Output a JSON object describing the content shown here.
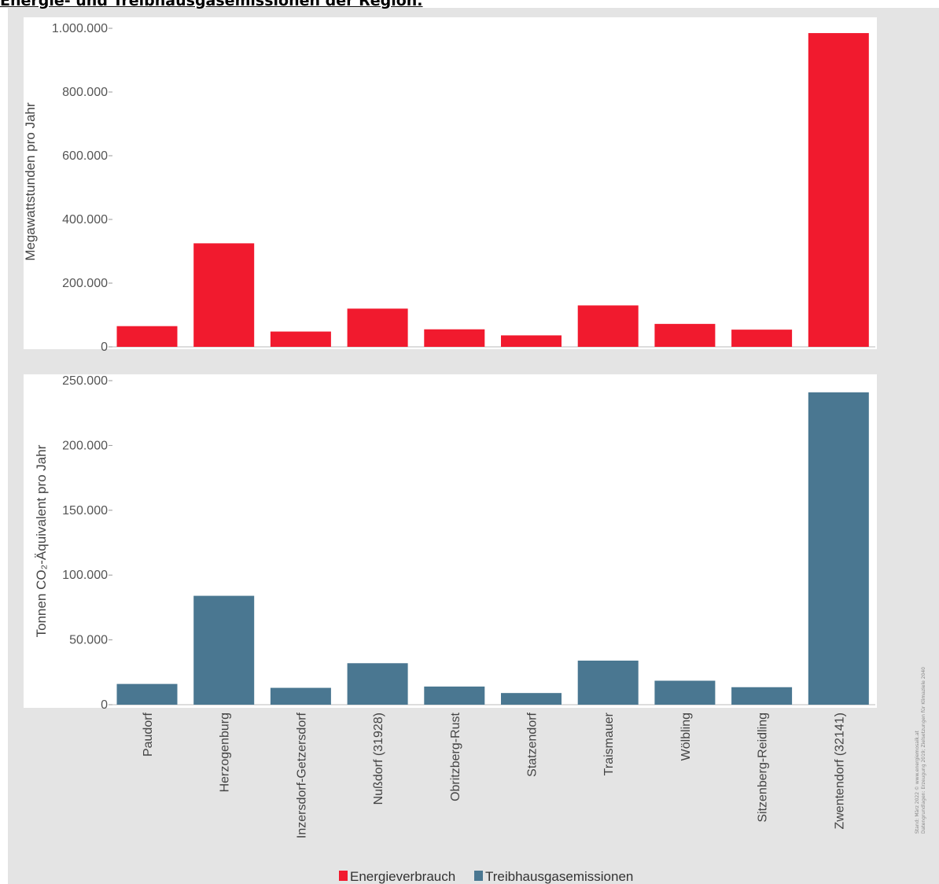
{
  "title": "Energie- und Treibhausgasemissionen der Region.",
  "source_lines": [
    "Stand: März 2022 © www.energiemosaik.at",
    "Datengrundlagen: Erzeugung 2019; Zielsetzungen für Klimaziele 2040"
  ],
  "colors": {
    "energy": "#f11a2e",
    "emissions": "#4a7791",
    "panel_bg": "#ffffff",
    "frame_bg": "#e4e4e4"
  },
  "chart_data": [
    {
      "type": "bar",
      "ylabel": "Megawattstunden pro Jahr",
      "ylim": [
        0,
        1000000
      ],
      "yticks": [
        0,
        200000,
        400000,
        600000,
        800000,
        1000000
      ],
      "ytick_labels": [
        "0",
        "200.000",
        "400.000",
        "600.000",
        "800.000",
        "1.000.000"
      ],
      "categories": [
        "Paudorf",
        "Herzogenburg",
        "Inzersdorf-Getzersdorf",
        "Nußdorf (31928)",
        "Obritzberg-Rust",
        "Statzendorf",
        "Traismauer",
        "Wölbling",
        "Sitzenberg-Reidling",
        "Zwentendorf (32141)"
      ],
      "series": [
        {
          "name": "Energieverbrauch",
          "values": [
            65000,
            325000,
            48000,
            120000,
            55000,
            36000,
            130000,
            72000,
            54000,
            985000
          ]
        }
      ],
      "grid": false
    },
    {
      "type": "bar",
      "ylabel": "Tonnen CO₂-Äquivalent pro Jahr",
      "ylim": [
        0,
        250000
      ],
      "yticks": [
        0,
        50000,
        100000,
        150000,
        200000,
        250000
      ],
      "ytick_labels": [
        "0",
        "50.000",
        "100.000",
        "150.000",
        "200.000",
        "250.000"
      ],
      "categories": [
        "Paudorf",
        "Herzogenburg",
        "Inzersdorf-Getzersdorf",
        "Nußdorf (31928)",
        "Obritzberg-Rust",
        "Statzendorf",
        "Traismauer",
        "Wölbling",
        "Sitzenberg-Reidling",
        "Zwentendorf (32141)"
      ],
      "series": [
        {
          "name": "Treibhausgasemissionen",
          "values": [
            16000,
            84000,
            13000,
            32000,
            14000,
            9000,
            34000,
            18500,
            13500,
            241000
          ]
        }
      ],
      "grid": false
    }
  ],
  "legend": {
    "items": [
      {
        "label": "Energieverbrauch",
        "color_key": "energy"
      },
      {
        "label": "Treibhausgasemissionen",
        "color_key": "emissions"
      }
    ],
    "placement": "bottom-center"
  }
}
